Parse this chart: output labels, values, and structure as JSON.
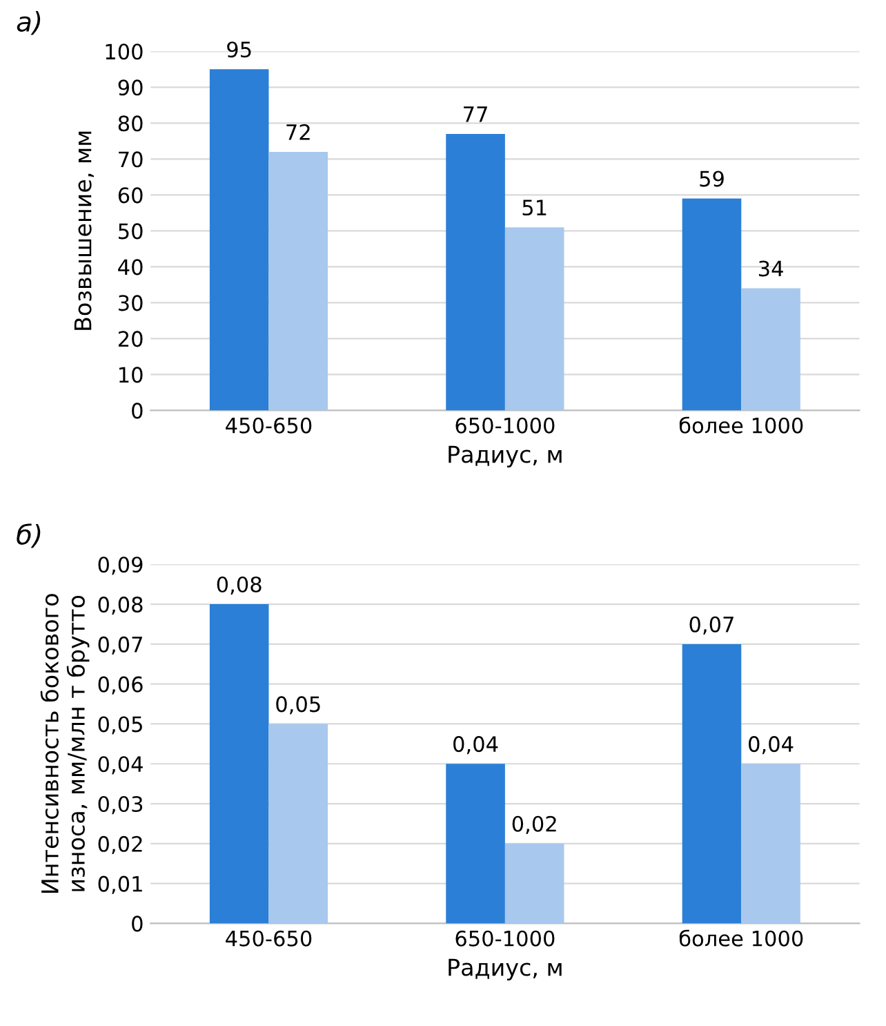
{
  "chart_data": [
    {
      "type": "bar",
      "title": "а)",
      "xlabel": "Радиус, м",
      "ylabel": "Возвышение, мм",
      "categories": [
        "450-650",
        "650-1000",
        "более 1000"
      ],
      "series": [
        {
          "color": "#2b7fd6",
          "values": [
            95,
            77,
            59
          ]
        },
        {
          "color": "#a8c8ee",
          "values": [
            72,
            51,
            34
          ]
        }
      ],
      "ylim": [
        0,
        100
      ],
      "yticks": [
        0,
        10,
        20,
        30,
        40,
        50,
        60,
        70,
        80,
        90,
        100
      ],
      "grid": "y",
      "data_labels": true
    },
    {
      "type": "bar",
      "title": "б)",
      "xlabel": "Радиус, м",
      "ylabel": "Интенсивность бокового износа, мм/млн т брутто",
      "categories": [
        "450-650",
        "650-1000",
        "более 1000"
      ],
      "series": [
        {
          "color": "#2b7fd6",
          "values": [
            0.08,
            0.04,
            0.07
          ],
          "value_labels": [
            "0,08",
            "0,04",
            "0,07"
          ]
        },
        {
          "color": "#a8c8ee",
          "values": [
            0.05,
            0.02,
            0.04
          ],
          "value_labels": [
            "0,05",
            "0,02",
            "0,04"
          ]
        }
      ],
      "ylim": [
        0,
        0.09
      ],
      "yticks": [
        0,
        {
          "value": 0.01,
          "label": "0,01"
        },
        {
          "value": 0.02,
          "label": "0,02"
        },
        {
          "value": 0.03,
          "label": "0,03"
        },
        {
          "value": 0.04,
          "label": "0,04"
        },
        {
          "value": 0.05,
          "label": "0,05"
        },
        {
          "value": 0.06,
          "label": "0,06"
        },
        {
          "value": 0.07,
          "label": "0,07"
        },
        {
          "value": 0.08,
          "label": "0,08"
        },
        {
          "value": 0.09,
          "label": "0,09"
        }
      ],
      "grid": "y"
    }
  ]
}
